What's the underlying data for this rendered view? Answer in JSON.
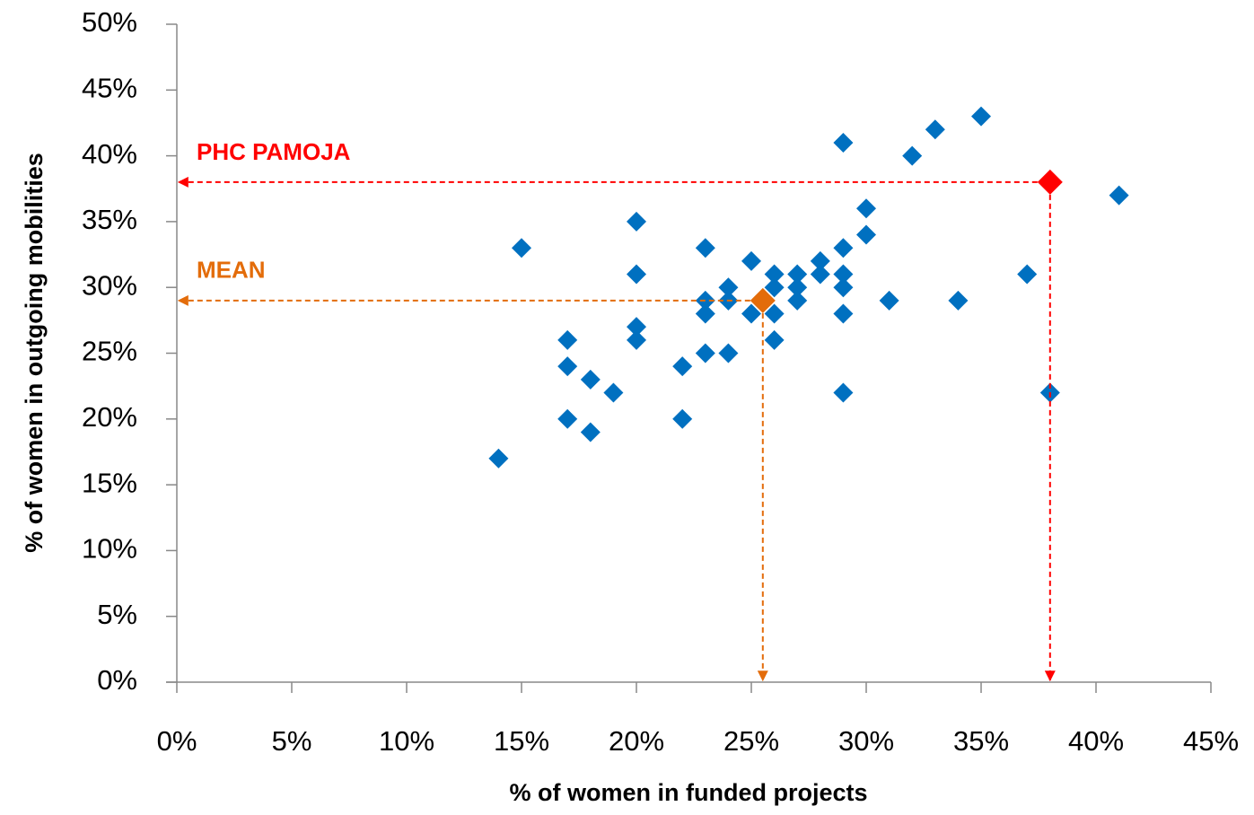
{
  "chart_data": {
    "type": "scatter",
    "x_label": "% of women in funded projects",
    "y_label": "% of women in outgoing mobilities",
    "xlim": [
      0,
      45
    ],
    "ylim": [
      0,
      50
    ],
    "xticks": [
      {
        "value": 0,
        "label": "0%"
      },
      {
        "value": 5,
        "label": "5%"
      },
      {
        "value": 10,
        "label": "10%"
      },
      {
        "value": 15,
        "label": "15%"
      },
      {
        "value": 20,
        "label": "20%"
      },
      {
        "value": 25,
        "label": "25%"
      },
      {
        "value": 30,
        "label": "30%"
      },
      {
        "value": 35,
        "label": "35%"
      },
      {
        "value": 40,
        "label": "40%"
      },
      {
        "value": 45,
        "label": "45%"
      }
    ],
    "yticks": [
      {
        "value": 0,
        "label": "0%"
      },
      {
        "value": 5,
        "label": "5%"
      },
      {
        "value": 10,
        "label": "10%"
      },
      {
        "value": 15,
        "label": "15%"
      },
      {
        "value": 20,
        "label": "20%"
      },
      {
        "value": 25,
        "label": "25%"
      },
      {
        "value": 30,
        "label": "30%"
      },
      {
        "value": 35,
        "label": "35%"
      },
      {
        "value": 40,
        "label": "40%"
      },
      {
        "value": 45,
        "label": "45%"
      },
      {
        "value": 50,
        "label": "50%"
      }
    ],
    "series": [
      {
        "color": "#0070c0",
        "x": [
          14,
          15,
          17,
          17,
          17,
          18,
          18,
          19,
          20,
          20,
          20,
          20,
          22,
          22,
          23,
          23,
          23,
          23,
          24,
          24,
          24,
          25,
          25,
          26,
          26,
          26,
          26,
          27,
          27,
          27,
          28,
          28,
          29,
          29,
          29,
          29,
          29,
          29,
          30,
          30,
          31,
          32,
          33,
          34,
          35,
          37,
          38,
          41
        ],
        "values": [
          17,
          33,
          26,
          24,
          20,
          23,
          19,
          22,
          35,
          31,
          27,
          26,
          24,
          20,
          33,
          29,
          28,
          25,
          30,
          29,
          25,
          32,
          28,
          31,
          30,
          28,
          26,
          31,
          30,
          29,
          32,
          31,
          41,
          33,
          31,
          30,
          28,
          22,
          36,
          34,
          29,
          40,
          42,
          29,
          43,
          31,
          22,
          37
        ]
      }
    ],
    "highlights": [
      {
        "label": "PHC PAMOJA",
        "color": "#ff0000",
        "x": 38,
        "y": 38
      },
      {
        "label": "MEAN",
        "color": "#e36c0a",
        "x": 25.5,
        "y": 29
      }
    ]
  }
}
